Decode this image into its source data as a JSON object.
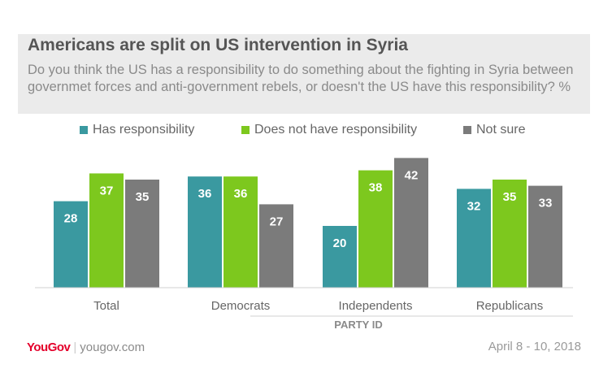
{
  "header": {
    "title": "Americans are split on US intervention in Syria",
    "subtitle": "Do you think the US has a responsibility to do something about the fighting in Syria between governmet forces and anti-government rebels, or doesn't the US have this responsibility? %"
  },
  "brand": {
    "logo": "YouGov",
    "separator": "|",
    "url": "yougov.com"
  },
  "date": "April 8 - 10, 2018",
  "colors": {
    "has_responsibility": "#3a99a0",
    "not_responsibility": "#7dc81e",
    "not_sure": "#7b7b7b"
  },
  "chart_data": {
    "type": "bar",
    "title": "Americans are split on US intervention in Syria",
    "xlabel": "PARTY ID",
    "ylabel": "",
    "ylim": [
      0,
      42
    ],
    "legend_position": "top",
    "categories": [
      "Total",
      "Democrats",
      "Independents",
      "Republicans"
    ],
    "series": [
      {
        "name": "Has responsibility",
        "color": "#3a99a0",
        "values": [
          28,
          36,
          20,
          32
        ]
      },
      {
        "name": "Does not have responsibility",
        "color": "#7dc81e",
        "values": [
          37,
          36,
          38,
          35
        ]
      },
      {
        "name": "Not sure",
        "color": "#7b7b7b",
        "values": [
          35,
          27,
          42,
          33
        ]
      }
    ]
  }
}
